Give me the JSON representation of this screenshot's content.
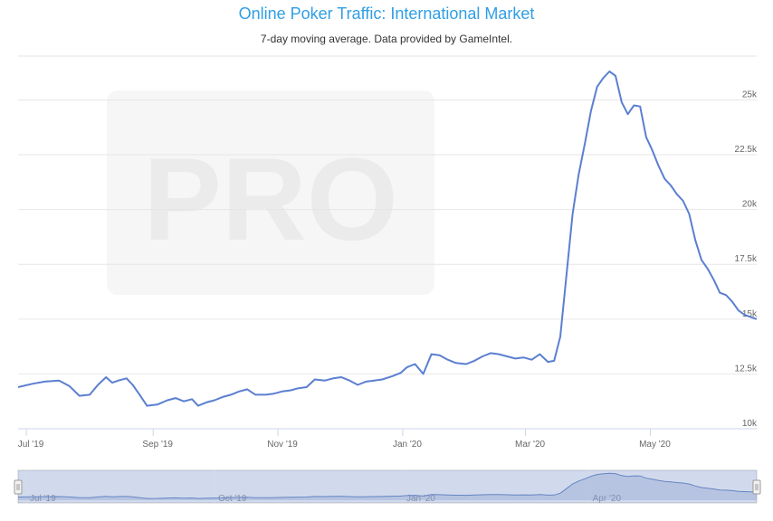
{
  "chart_data": {
    "type": "line",
    "title": "Online Poker Traffic: International Market",
    "subtitle": "7-day moving average. Data provided by GameIntel.",
    "watermark": "PRO",
    "xlabel": "",
    "ylabel": "",
    "x_range": [
      "2019-06-27",
      "2020-06-22"
    ],
    "ylim": [
      10000,
      27000
    ],
    "y_ticks": [
      10000,
      12500,
      15000,
      17500,
      20000,
      22500,
      25000
    ],
    "y_tick_labels": [
      "10k",
      "12.5k",
      "15k",
      "17.5k",
      "20k",
      "22.5k",
      "25k"
    ],
    "x_ticks": [
      "2019-07-01",
      "2019-09-01",
      "2019-11-01",
      "2020-01-01",
      "2020-03-01",
      "2020-05-01"
    ],
    "x_tick_labels": [
      "Jul '19",
      "Sep '19",
      "Nov '19",
      "Jan '20",
      "Mar '20",
      "May '20"
    ],
    "grid": true,
    "legend": "none",
    "series": [
      {
        "color": "#5b7fd1",
        "x": [
          "2019-06-27",
          "2019-07-04",
          "2019-07-10",
          "2019-07-17",
          "2019-07-22",
          "2019-07-27",
          "2019-08-01",
          "2019-08-05",
          "2019-08-09",
          "2019-08-12",
          "2019-08-15",
          "2019-08-19",
          "2019-08-22",
          "2019-08-25",
          "2019-08-29",
          "2019-09-03",
          "2019-09-08",
          "2019-09-12",
          "2019-09-16",
          "2019-09-20",
          "2019-09-23",
          "2019-09-27",
          "2019-10-01",
          "2019-10-05",
          "2019-10-09",
          "2019-10-13",
          "2019-10-17",
          "2019-10-21",
          "2019-10-26",
          "2019-10-30",
          "2019-11-03",
          "2019-11-07",
          "2019-11-11",
          "2019-11-15",
          "2019-11-19",
          "2019-11-24",
          "2019-11-28",
          "2019-12-02",
          "2019-12-06",
          "2019-12-10",
          "2019-12-14",
          "2019-12-18",
          "2019-12-22",
          "2019-12-27",
          "2019-12-31",
          "2020-01-03",
          "2020-01-07",
          "2020-01-11",
          "2020-01-15",
          "2020-01-19",
          "2020-01-23",
          "2020-01-27",
          "2020-02-01",
          "2020-02-05",
          "2020-02-09",
          "2020-02-13",
          "2020-02-17",
          "2020-02-21",
          "2020-02-25",
          "2020-02-29",
          "2020-03-04",
          "2020-03-08",
          "2020-03-12",
          "2020-03-15",
          "2020-03-18",
          "2020-03-21",
          "2020-03-24",
          "2020-03-27",
          "2020-03-30",
          "2020-04-02",
          "2020-04-05",
          "2020-04-08",
          "2020-04-11",
          "2020-04-14",
          "2020-04-17",
          "2020-04-20",
          "2020-04-23",
          "2020-04-26",
          "2020-04-29",
          "2020-05-02",
          "2020-05-05",
          "2020-05-08",
          "2020-05-11",
          "2020-05-14",
          "2020-05-17",
          "2020-05-20",
          "2020-05-23",
          "2020-05-26",
          "2020-05-29",
          "2020-06-01",
          "2020-06-04",
          "2020-06-07",
          "2020-06-10",
          "2020-06-13",
          "2020-06-16",
          "2020-06-19",
          "2020-06-22"
        ],
        "y": [
          11900,
          12050,
          12150,
          12200,
          11950,
          11500,
          11550,
          12000,
          12350,
          12100,
          12200,
          12300,
          12000,
          11600,
          11050,
          11100,
          11300,
          11400,
          11250,
          11350,
          11050,
          11200,
          11300,
          11450,
          11550,
          11700,
          11800,
          11550,
          11550,
          11600,
          11700,
          11750,
          11850,
          11900,
          12250,
          12200,
          12300,
          12350,
          12200,
          12000,
          12150,
          12200,
          12250,
          12400,
          12550,
          12800,
          12950,
          12500,
          13400,
          13350,
          13150,
          13000,
          12950,
          13100,
          13300,
          13450,
          13400,
          13300,
          13200,
          13250,
          13150,
          13400,
          13050,
          13100,
          14200,
          17000,
          19800,
          21600,
          23000,
          24500,
          25600,
          26000,
          26300,
          26100,
          24900,
          24350,
          24750,
          24700,
          23300,
          22700,
          22000,
          21400,
          21100,
          20700,
          20400,
          19800,
          18600,
          17700,
          17300,
          16800,
          16200,
          16100,
          15800,
          15400,
          15200,
          15100,
          15000
        ]
      }
    ]
  },
  "navigator": {
    "tick_labels": [
      "Jul '19",
      "Oct '19",
      "Jan '20",
      "Apr '20"
    ]
  }
}
